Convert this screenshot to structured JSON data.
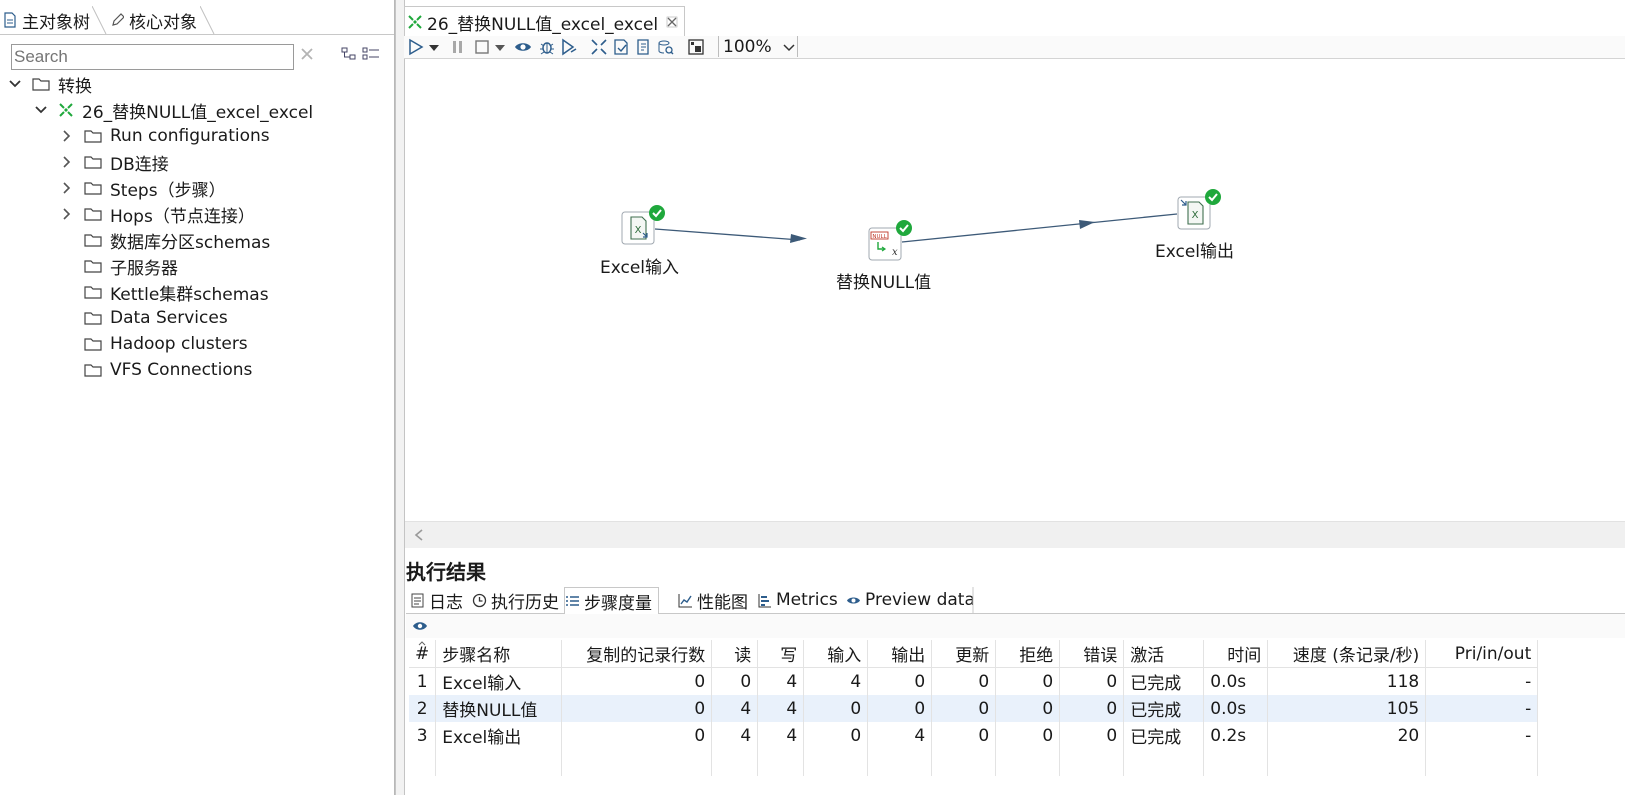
{
  "left_tabs": [
    {
      "label": "主对象树"
    },
    {
      "label": "核心对象"
    }
  ],
  "search": {
    "placeholder": "Search"
  },
  "tree": {
    "root": "转换",
    "transformation": "26_替换NULL值_excel_excel",
    "items": [
      "Run configurations",
      "DB连接",
      "Steps（步骤）",
      "Hops（节点连接）",
      "数据库分区schemas",
      "子服务器",
      "Kettle集群schemas",
      "Data Services",
      "Hadoop clusters",
      "VFS Connections"
    ]
  },
  "editor": {
    "tab_title": "26_替换NULL值_excel_excel",
    "zoom": "100%"
  },
  "steps": [
    {
      "label": "Excel输入"
    },
    {
      "label": "替换NULL值"
    },
    {
      "label": "Excel输出"
    }
  ],
  "results": {
    "title": "执行结果",
    "tabs": [
      "日志",
      "执行历史",
      "步骤度量",
      "性能图",
      "Metrics",
      "Preview data"
    ],
    "columns": [
      "#",
      "步骤名称",
      "复制的记录行数",
      "读",
      "写",
      "输入",
      "输出",
      "更新",
      "拒绝",
      "错误",
      "激活",
      "时间",
      "速度 (条记录/秒)",
      "Pri/in/out"
    ],
    "rows": [
      [
        "1",
        "Excel输入",
        "0",
        "0",
        "4",
        "4",
        "0",
        "0",
        "0",
        "0",
        "已完成",
        "0.0s",
        "118",
        "-"
      ],
      [
        "2",
        "替换NULL值",
        "0",
        "4",
        "4",
        "0",
        "0",
        "0",
        "0",
        "0",
        "已完成",
        "0.0s",
        "105",
        "-"
      ],
      [
        "3",
        "Excel输出",
        "0",
        "4",
        "4",
        "0",
        "4",
        "0",
        "0",
        "0",
        "已完成",
        "0.2s",
        "20",
        "-"
      ]
    ]
  },
  "colors": {
    "accent_green": "#1fa83c",
    "hop_line": "#3d5a78",
    "selected_row": "#e9f1fb"
  }
}
